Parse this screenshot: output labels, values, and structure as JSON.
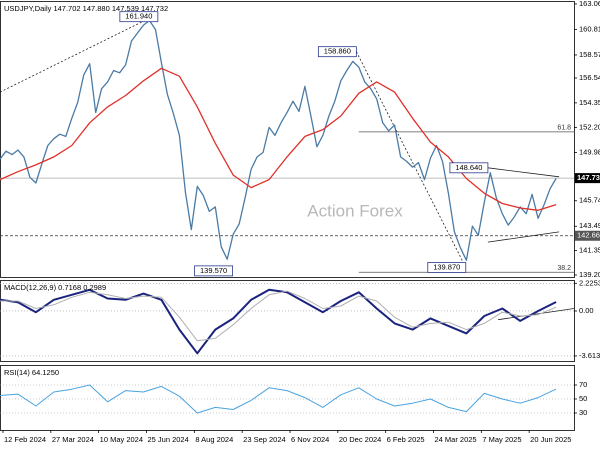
{
  "chart_data": [
    {
      "type": "line",
      "title": "USDJPY,Daily  147.702 147.880 147.539 147.732",
      "watermark": "Action Forex",
      "xlim": [
        0,
        96
      ],
      "ylim": [
        139.03,
        163.32
      ],
      "yticks": [
        {
          "value": 163.06,
          "label": "163.060"
        },
        {
          "value": 160.815,
          "label": "160.815"
        },
        {
          "value": 158.57,
          "label": "158.570"
        },
        {
          "value": 156.545,
          "label": "156.545"
        },
        {
          "value": 154.355,
          "label": "154.355"
        },
        {
          "value": 152.2,
          "label": "152.200"
        },
        {
          "value": 149.985,
          "label": "149.985"
        },
        {
          "value": 145.74,
          "label": "145.740"
        },
        {
          "value": 143.495,
          "label": "143.495"
        },
        {
          "value": 141.35,
          "label": "141.350"
        },
        {
          "value": 139.205,
          "label": "139.205"
        }
      ],
      "grid": false,
      "series": [
        {
          "color": "#4a7ba6",
          "values": [
            149.4,
            150.1,
            149.8,
            150.2,
            149.6,
            147.8,
            147.3,
            149.0,
            150.6,
            151.2,
            151.6,
            151.4,
            153.0,
            154.4,
            156.8,
            157.8,
            153.5,
            155.6,
            156.2,
            157.2,
            157.0,
            157.7,
            159.8,
            160.5,
            161.2,
            161.6,
            160.8,
            157.9,
            155.1,
            153.4,
            151.5,
            146.5,
            143.2,
            147.0,
            146.2,
            144.8,
            145.2,
            141.7,
            140.6,
            142.8,
            143.7,
            146.0,
            148.5,
            149.6,
            150.0,
            152.2,
            151.5,
            152.6,
            153.5,
            154.5,
            153.6,
            155.8,
            153.2,
            150.5,
            151.5,
            153.2,
            154.5,
            156.3,
            157.2,
            158.0,
            157.5,
            156.2,
            155.6,
            154.7,
            152.6,
            151.9,
            152.4,
            149.6,
            149.2,
            148.7,
            149.1,
            147.6,
            149.5,
            150.6,
            149.2,
            146.4,
            143.0,
            141.6,
            140.5,
            143.5,
            142.7,
            145.6,
            148.2,
            146.0,
            144.6,
            143.6,
            144.3,
            145.2,
            144.6,
            146.3,
            144.2,
            145.4,
            146.8,
            147.7
          ]
        },
        {
          "color": "#e0302a",
          "x": [
            0,
            3,
            6,
            9,
            12,
            15,
            18,
            21,
            24,
            27,
            30,
            33,
            36,
            39,
            42,
            45,
            48,
            51,
            54,
            57,
            60,
            63,
            66,
            69,
            72,
            75,
            78,
            81,
            84,
            87,
            90,
            93
          ],
          "values": [
            147.6,
            148.3,
            148.9,
            149.6,
            150.6,
            152.6,
            154.0,
            155.0,
            156.3,
            157.4,
            156.7,
            154.0,
            150.8,
            148.0,
            146.9,
            147.6,
            149.6,
            151.4,
            152.0,
            153.2,
            155.2,
            156.2,
            155.3,
            153.0,
            150.9,
            149.6,
            147.7,
            146.4,
            145.5,
            145.1,
            144.9,
            145.4
          ]
        }
      ],
      "price_label": {
        "value": 147.732,
        "label": "147.732"
      },
      "level_lines": [
        {
          "value": 142.66,
          "label": "142.660"
        }
      ],
      "fib_levels": [
        {
          "value": 151.8,
          "label": "61.8",
          "from_x": 60
        },
        {
          "value": 139.45,
          "label": "38.2",
          "from_x": 60
        }
      ],
      "annotations": [
        {
          "label": "161.940",
          "value": 161.94,
          "x": 26.4
        },
        {
          "label": "158.860",
          "value": 158.86,
          "x": 59.6
        },
        {
          "label": "148.640",
          "value": 148.64,
          "x": 81.6
        },
        {
          "label": "139.570",
          "value": 139.57,
          "x": 38.9
        },
        {
          "label": "139.870",
          "value": 139.87,
          "x": 77.9
        }
      ],
      "trendlines": [
        {
          "x": [
            0,
            25.5
          ],
          "y": [
            155.3,
            161.94
          ]
        },
        {
          "x": [
            59.6,
            77.9
          ],
          "y": [
            158.86,
            139.87
          ]
        },
        {
          "x": [
            81.6,
            93.5
          ],
          "y": [
            148.64,
            147.85
          ]
        },
        {
          "x": [
            81.6,
            93.5
          ],
          "y": [
            142.1,
            143.0
          ]
        }
      ]
    },
    {
      "type": "line",
      "title": "MACD(12,26,9) 0.7168 0.2989",
      "xlim": [
        0,
        96
      ],
      "ylim": [
        -4.02,
        2.49
      ],
      "yticks": [
        2.2253,
        {
          "value": 0,
          "label": "0.00"
        },
        -3.6133
      ],
      "grid": true,
      "series": [
        {
          "color": "#1a237e",
          "width": 2,
          "x": [
            0,
            3,
            6,
            9,
            12,
            15,
            18,
            21,
            24,
            27,
            30,
            33,
            36,
            39,
            42,
            45,
            48,
            51,
            54,
            57,
            60,
            63,
            66,
            69,
            72,
            75,
            78,
            81,
            84,
            87,
            90,
            93
          ],
          "values": [
            0.9,
            0.7,
            -0.1,
            0.9,
            1.3,
            1.7,
            1.0,
            0.9,
            1.4,
            0.9,
            -1.5,
            -3.4,
            -1.5,
            -0.6,
            0.9,
            1.7,
            1.5,
            0.7,
            -0.1,
            0.8,
            1.5,
            0.2,
            -1.0,
            -1.5,
            -0.6,
            -1.2,
            -1.8,
            -0.4,
            0.2,
            -0.8,
            0.0,
            0.72
          ]
        },
        {
          "color": "#b0b0b0",
          "width": 1,
          "x": [
            0,
            3,
            6,
            9,
            12,
            15,
            18,
            21,
            24,
            27,
            30,
            33,
            36,
            39,
            42,
            45,
            48,
            51,
            54,
            57,
            60,
            63,
            66,
            69,
            72,
            75,
            78,
            81,
            84,
            87,
            90,
            93
          ],
          "values": [
            0.8,
            0.8,
            0.2,
            0.5,
            1.1,
            1.5,
            1.3,
            1.0,
            1.2,
            1.1,
            -0.5,
            -2.4,
            -2.2,
            -1.1,
            0.2,
            1.3,
            1.6,
            1.0,
            0.2,
            0.4,
            1.2,
            0.8,
            -0.5,
            -1.3,
            -1.0,
            -0.9,
            -1.5,
            -1.0,
            -0.1,
            -0.4,
            -0.3,
            0.3
          ]
        }
      ],
      "trendlines": [
        {
          "x": [
            83.3,
            96
          ],
          "y": [
            -0.7,
            0.2
          ]
        }
      ]
    },
    {
      "type": "line",
      "title": "RSI(14) 64.1250",
      "xlim": [
        0,
        96
      ],
      "ylim": [
        5.7,
        98.6
      ],
      "yticks": [
        70,
        50,
        30
      ],
      "grid": true,
      "series": [
        {
          "color": "#4aa3df",
          "width": 1,
          "x": [
            0,
            3,
            6,
            9,
            12,
            15,
            18,
            21,
            24,
            27,
            30,
            33,
            36,
            39,
            42,
            45,
            48,
            51,
            54,
            57,
            60,
            63,
            66,
            69,
            72,
            75,
            78,
            81,
            84,
            87,
            90,
            93
          ],
          "values": [
            55,
            57,
            40,
            60,
            64,
            70,
            46,
            62,
            60,
            68,
            54,
            30,
            38,
            35,
            48,
            66,
            62,
            52,
            38,
            56,
            66,
            50,
            40,
            44,
            50,
            38,
            32,
            58,
            50,
            44,
            52,
            64.125
          ]
        }
      ],
      "xticks": [
        {
          "value": 0.5,
          "label": "12 Feb 2024"
        },
        {
          "value": 8.5,
          "label": "27 Mar 2024"
        },
        {
          "value": 16.5,
          "label": "10 May 2024"
        },
        {
          "value": 24.5,
          "label": "25 Jun 2024"
        },
        {
          "value": 32.5,
          "label": "8 Aug 2024"
        },
        {
          "value": 40.5,
          "label": "23 Sep 2024"
        },
        {
          "value": 48.5,
          "label": "6 Nov 2024"
        },
        {
          "value": 56.5,
          "label": "20 Dec 2024"
        },
        {
          "value": 64.5,
          "label": "6 Feb 2025"
        },
        {
          "value": 72.5,
          "label": "24 Mar 2025"
        },
        {
          "value": 80.5,
          "label": "7 May 2025"
        },
        {
          "value": 88.5,
          "label": "20 Jun 2025"
        }
      ]
    }
  ]
}
